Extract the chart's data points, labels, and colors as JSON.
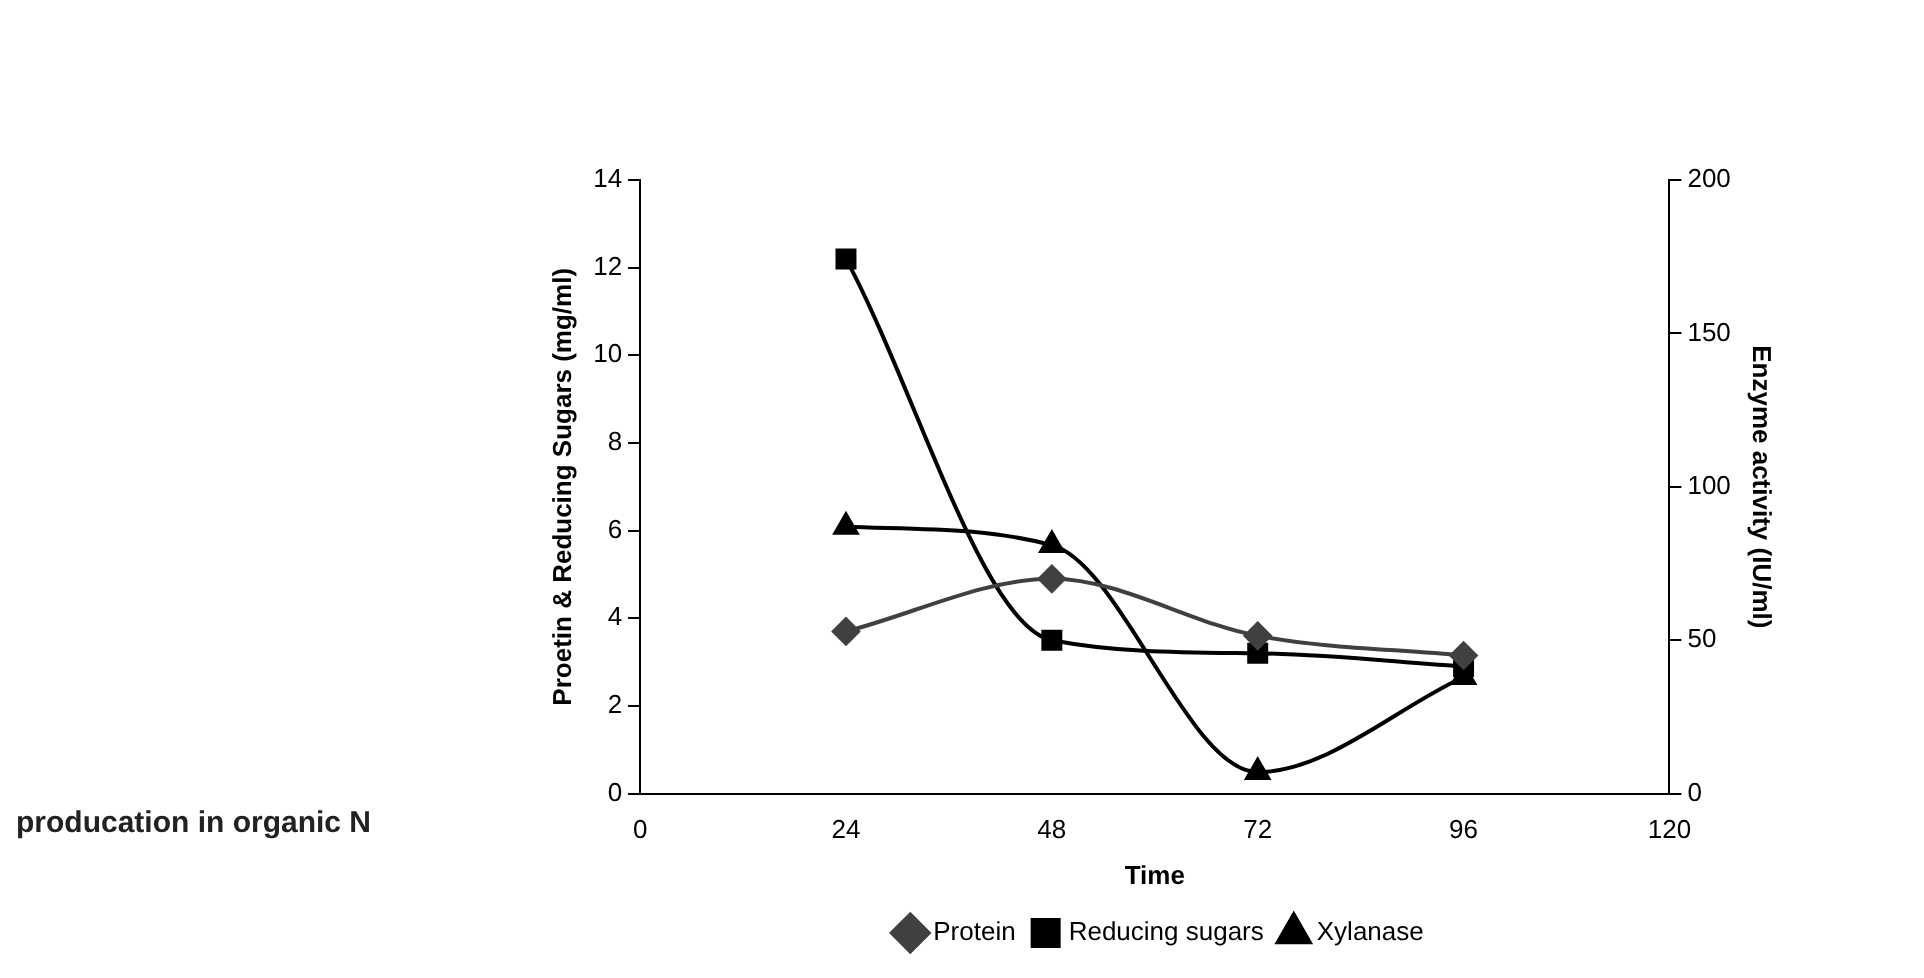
{
  "chart_data": {
    "type": "line",
    "xlabel": "Time",
    "ylabel": "Proetin & Reducing Sugars (mg/ml)",
    "y2label": "Enzyme activity (IU/ml)",
    "x": [
      24,
      48,
      72,
      96
    ],
    "xlim": [
      0,
      120
    ],
    "xticks": [
      0,
      24,
      48,
      72,
      96,
      120
    ],
    "ylim": [
      0,
      14
    ],
    "yticks": [
      0,
      2,
      4,
      6,
      8,
      10,
      12,
      14
    ],
    "y2lim": [
      0,
      200
    ],
    "y2ticks": [
      0,
      50,
      100,
      150,
      200
    ],
    "series": [
      {
        "name": "Protein",
        "color": "#404040",
        "marker": "diamond",
        "values": [
          3.7,
          4.9,
          3.6,
          3.15
        ]
      },
      {
        "name": "Reducing sugars",
        "color": "#000000",
        "marker": "square",
        "values": [
          12.2,
          3.5,
          3.2,
          2.9
        ]
      },
      {
        "name": "Xylanase",
        "color": "#000000",
        "marker": "triangle",
        "axis": "y2",
        "values": [
          87,
          81,
          7,
          38
        ]
      }
    ],
    "grid": false,
    "legend": "bottom",
    "annotations": [
      "producation in organic N"
    ]
  }
}
